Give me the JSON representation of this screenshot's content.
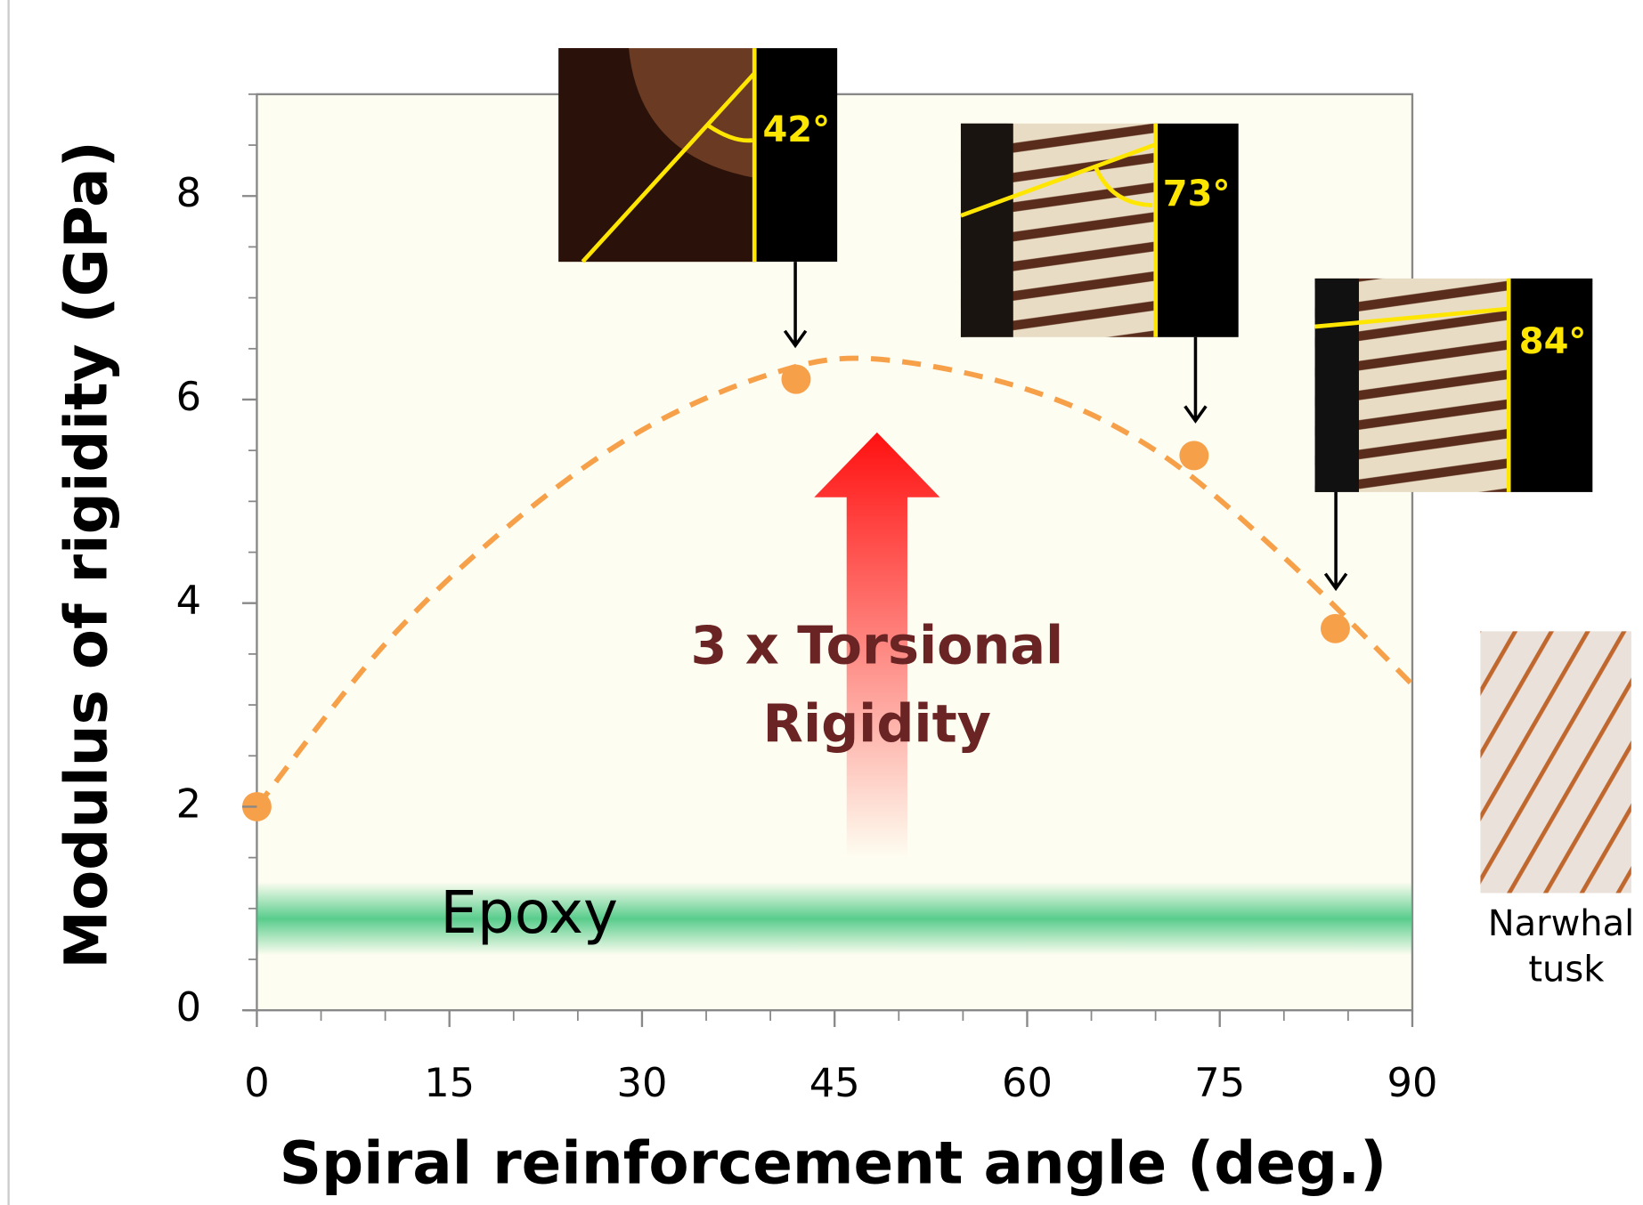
{
  "chart_data": {
    "type": "scatter",
    "x_label": "Spiral reinforcement angle (deg.)",
    "y_label": "Modulus of rigidity (GPa)",
    "x": [
      0,
      42,
      73,
      84
    ],
    "values": [
      2.0,
      6.2,
      5.45,
      3.75
    ],
    "color": "#f7a04a",
    "fit": {
      "x": [
        0,
        10,
        20,
        30,
        40,
        48,
        60,
        70,
        80,
        90
      ],
      "values": [
        2.0,
        3.6,
        4.8,
        5.7,
        6.25,
        6.4,
        6.1,
        5.5,
        4.45,
        3.2
      ],
      "color": "#f7a04a",
      "style": "dashed"
    },
    "epoxy": {
      "label": "Epoxy",
      "value": 0.9,
      "color": "#3cc47a"
    },
    "xlim": [
      0,
      90
    ],
    "ylim": [
      0,
      9
    ],
    "xticks": [
      0,
      15,
      30,
      45,
      60,
      75,
      90
    ],
    "yticks": [
      0,
      2,
      4,
      6,
      8
    ],
    "xminorticks": [
      5,
      10,
      20,
      25,
      35,
      40,
      50,
      55,
      65,
      70,
      80,
      85
    ],
    "yminorticks": [
      0.5,
      1,
      1.5,
      2.5,
      3,
      3.5,
      4.5,
      5,
      5.5,
      6.5,
      7,
      7.5,
      8.5,
      9
    ],
    "annotations": [
      "3 x Torsional",
      "Rigidity"
    ],
    "insets": [
      "42°",
      "73°",
      "84°"
    ],
    "specimen": [
      "Narwhal",
      "tusk"
    ]
  }
}
